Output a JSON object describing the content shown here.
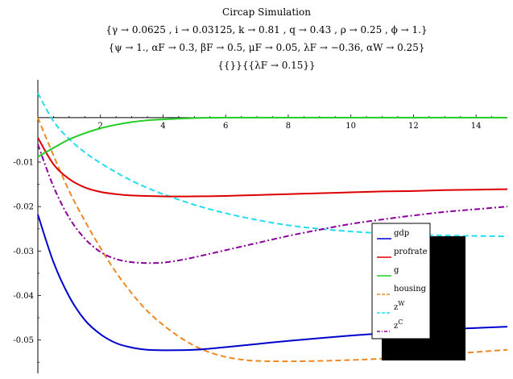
{
  "chart_data": {
    "type": "line",
    "title": "Circap Simulation",
    "subtitle_lines": [
      "{γ → 0.0625 , i → 0.03125, k → 0.81 , q → 0.43 , ρ → 0.25 , ϕ → 1.}",
      "{ψ → 1., αF → 0.3, βF → 0.5, μF → 0.05, λF → −0.36, αW → 0.25}",
      "{{}}{{λF → 0.15}}"
    ],
    "xlabel": "",
    "ylabel": "",
    "xlim": [
      0,
      15
    ],
    "ylim": [
      -0.0575,
      0.0085
    ],
    "x_ticks": [
      2,
      4,
      6,
      8,
      10,
      12,
      14
    ],
    "y_ticks": [
      -0.01,
      -0.02,
      -0.03,
      -0.04,
      -0.05
    ],
    "x_tick_labels": [
      "2",
      "4",
      "6",
      "8",
      "10",
      "12",
      "14"
    ],
    "y_tick_labels": [
      "-0.01",
      "-0.02",
      "-0.03",
      "-0.04",
      "-0.05"
    ],
    "grid": false,
    "legend_position": "right",
    "series": [
      {
        "name": "gdp",
        "color": "#0000cc",
        "dash": "solid",
        "x": [
          0,
          0.5,
          1,
          1.5,
          2,
          2.5,
          3,
          3.5,
          4,
          5,
          6,
          7,
          8,
          9,
          10,
          11,
          12,
          13,
          14,
          15
        ],
        "y": [
          -0.0218,
          -0.0325,
          -0.0402,
          -0.0455,
          -0.0487,
          -0.0507,
          -0.0517,
          -0.0522,
          -0.0523,
          -0.0522,
          -0.0516,
          -0.0509,
          -0.0502,
          -0.0496,
          -0.049,
          -0.0485,
          -0.048,
          -0.0476,
          -0.0473,
          -0.047
        ]
      },
      {
        "name": "profrate",
        "color": "#dd0000",
        "dash": "solid",
        "x": [
          0,
          0.5,
          1,
          1.5,
          2,
          2.5,
          3,
          4,
          5,
          6,
          7,
          8,
          9,
          10,
          11,
          12,
          13,
          14,
          15
        ],
        "y": [
          -0.0045,
          -0.0105,
          -0.0138,
          -0.0157,
          -0.0167,
          -0.0172,
          -0.0175,
          -0.0177,
          -0.0177,
          -0.0176,
          -0.0174,
          -0.0172,
          -0.017,
          -0.0168,
          -0.0166,
          -0.0165,
          -0.0163,
          -0.0162,
          -0.0161
        ]
      },
      {
        "name": "g",
        "color": "#22cc22",
        "dash": "solid",
        "x": [
          0,
          0.5,
          1,
          1.5,
          2,
          2.5,
          3,
          3.5,
          4,
          5,
          6,
          7,
          8,
          10,
          12,
          15
        ],
        "y": [
          -0.0088,
          -0.0068,
          -0.0049,
          -0.0035,
          -0.0024,
          -0.0016,
          -0.001,
          -0.0006,
          -0.0004,
          -0.0001,
          0,
          0,
          0,
          0,
          0,
          0
        ]
      },
      {
        "name": "housing",
        "color": "#ee8822",
        "dash": "dashed",
        "x": [
          0,
          0.5,
          1,
          1.5,
          2,
          2.5,
          3,
          3.5,
          4,
          4.5,
          5,
          5.5,
          6,
          6.5,
          7,
          8,
          9,
          10,
          11,
          12,
          13,
          14,
          15
        ],
        "y": [
          0,
          -0.0085,
          -0.0165,
          -0.0232,
          -0.0293,
          -0.0348,
          -0.0395,
          -0.0435,
          -0.0466,
          -0.0492,
          -0.0513,
          -0.0528,
          -0.0538,
          -0.0544,
          -0.0547,
          -0.0548,
          -0.0547,
          -0.0545,
          -0.0542,
          -0.0537,
          -0.0532,
          -0.0527,
          -0.0522
        ]
      },
      {
        "name": "z^W",
        "color": "#22ddee",
        "dash": "dashed",
        "x": [
          0,
          0.5,
          1,
          1.5,
          2,
          2.5,
          3,
          3.5,
          4,
          5,
          6,
          7,
          8,
          9,
          10,
          11,
          12,
          13,
          14,
          15
        ],
        "y": [
          0.0055,
          -0.0008,
          -0.0048,
          -0.0078,
          -0.0102,
          -0.0123,
          -0.0142,
          -0.0158,
          -0.0172,
          -0.0196,
          -0.0215,
          -0.023,
          -0.0242,
          -0.025,
          -0.0256,
          -0.026,
          -0.0263,
          -0.0265,
          -0.0266,
          -0.0267
        ]
      },
      {
        "name": "z^C",
        "color": "#880099",
        "dash": "dashdot",
        "x": [
          0,
          0.5,
          1,
          1.5,
          2,
          2.5,
          3,
          3.5,
          4,
          4.5,
          5,
          6,
          7,
          8,
          9,
          10,
          11,
          12,
          13,
          14,
          15
        ],
        "y": [
          -0.006,
          -0.0155,
          -0.0225,
          -0.0272,
          -0.0302,
          -0.0318,
          -0.0325,
          -0.0327,
          -0.0326,
          -0.0321,
          -0.0314,
          -0.0298,
          -0.0282,
          -0.0266,
          -0.0252,
          -0.0239,
          -0.0229,
          -0.022,
          -0.0212,
          -0.0206,
          -0.02
        ]
      }
    ],
    "legend": [
      {
        "label": "gdp",
        "sup": ""
      },
      {
        "label": "profrate",
        "sup": ""
      },
      {
        "label": "g",
        "sup": ""
      },
      {
        "label": "housing",
        "sup": ""
      },
      {
        "label": "z",
        "sup": "W"
      },
      {
        "label": "z",
        "sup": "C"
      }
    ]
  }
}
